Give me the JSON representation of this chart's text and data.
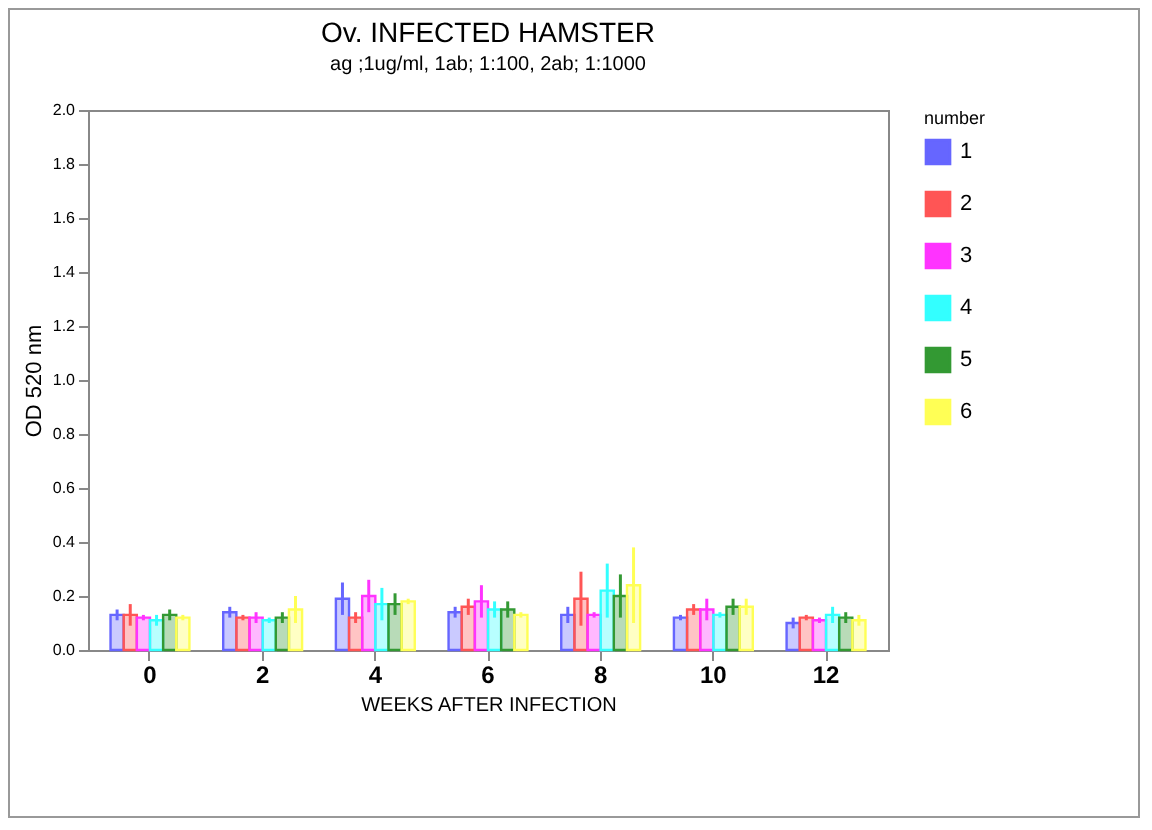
{
  "chart_data": {
    "type": "bar",
    "title": "Ov. INFECTED HAMSTER",
    "subtitle": "ag ;1ug/ml,   1ab; 1:100,   2ab;  1:1000",
    "xlabel": "WEEKS AFTER INFECTION",
    "ylabel": "OD 520 nm",
    "legend_title": "number",
    "legend": "right",
    "categories": [
      "0",
      "2",
      "4",
      "6",
      "8",
      "10",
      "12"
    ],
    "series": [
      {
        "name": "1",
        "color": "#6666ff",
        "values": [
          0.13,
          0.14,
          0.19,
          0.14,
          0.13,
          0.12,
          0.1
        ],
        "errors": [
          0.02,
          0.02,
          0.06,
          0.02,
          0.03,
          0.01,
          0.02
        ]
      },
      {
        "name": "2",
        "color": "#ff5555",
        "values": [
          0.13,
          0.12,
          0.12,
          0.16,
          0.19,
          0.15,
          0.12
        ],
        "errors": [
          0.04,
          0.01,
          0.02,
          0.03,
          0.1,
          0.02,
          0.01
        ]
      },
      {
        "name": "3",
        "color": "#ff33ff",
        "values": [
          0.12,
          0.12,
          0.2,
          0.18,
          0.13,
          0.15,
          0.11
        ],
        "errors": [
          0.01,
          0.02,
          0.06,
          0.06,
          0.01,
          0.04,
          0.01
        ]
      },
      {
        "name": "4",
        "color": "#33ffff",
        "values": [
          0.11,
          0.11,
          0.17,
          0.15,
          0.22,
          0.13,
          0.13
        ],
        "errors": [
          0.02,
          0.01,
          0.06,
          0.03,
          0.1,
          0.01,
          0.03
        ]
      },
      {
        "name": "5",
        "color": "#339933",
        "values": [
          0.13,
          0.12,
          0.17,
          0.15,
          0.2,
          0.16,
          0.12
        ],
        "errors": [
          0.02,
          0.02,
          0.04,
          0.03,
          0.08,
          0.03,
          0.02
        ]
      },
      {
        "name": "6",
        "color": "#ffff55",
        "values": [
          0.12,
          0.15,
          0.18,
          0.13,
          0.24,
          0.16,
          0.11
        ],
        "errors": [
          0.01,
          0.05,
          0.01,
          0.01,
          0.14,
          0.03,
          0.02
        ]
      }
    ],
    "ylim": [
      0,
      2
    ],
    "yticks": [
      {
        "value": 0,
        "label": "0.0"
      },
      0.2,
      0.4,
      0.6,
      0.8,
      {
        "value": 1,
        "label": "1.0"
      },
      1.2,
      1.4,
      1.6,
      1.8,
      {
        "value": 2,
        "label": "2.0"
      }
    ],
    "grid": false
  }
}
